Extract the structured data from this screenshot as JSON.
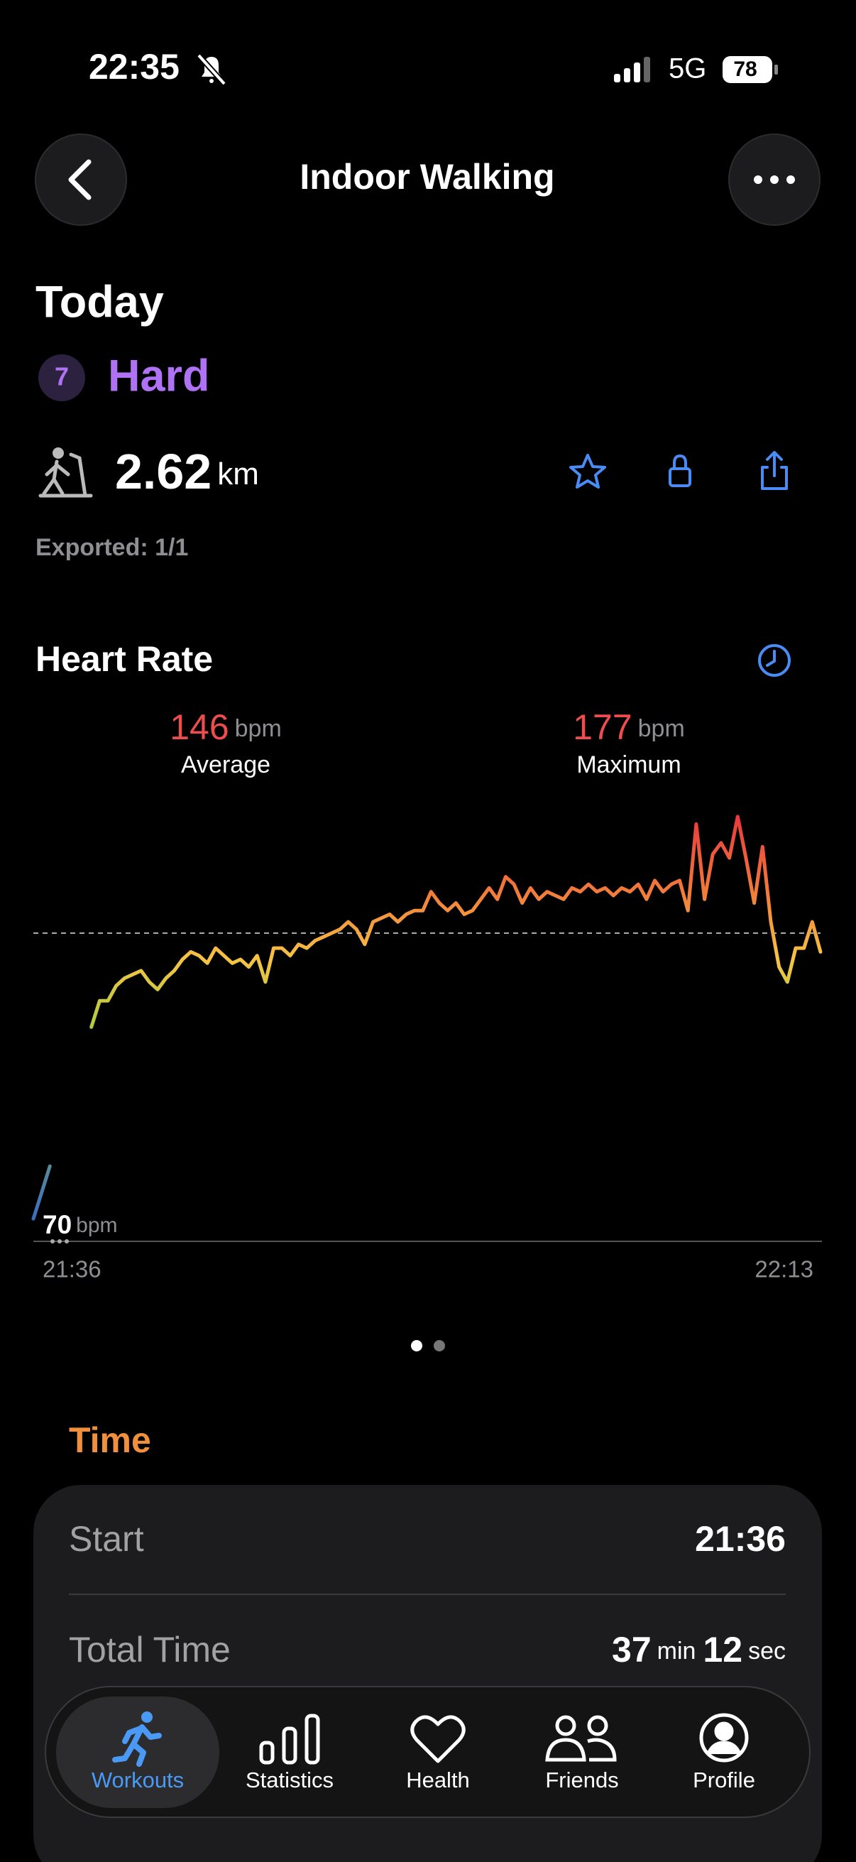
{
  "status_bar": {
    "time": "22:35",
    "network": "5G",
    "battery": 78
  },
  "header": {
    "title": "Indoor Walking"
  },
  "summary": {
    "date": "Today",
    "effort_level": 7,
    "effort_label": "Hard",
    "distance": 2.62,
    "distance_unit": "km",
    "exported": "Exported: 1/1"
  },
  "heart_rate": {
    "title": "Heart Rate",
    "average": {
      "value": 146,
      "unit": "bpm",
      "label": "Average"
    },
    "maximum": {
      "value": 177,
      "unit": "bpm",
      "label": "Maximum"
    }
  },
  "chart_data": {
    "type": "line",
    "categories": [
      "21:36",
      null,
      null,
      null,
      null,
      null,
      null,
      null,
      null,
      null,
      null,
      null,
      null,
      null,
      null,
      null,
      null,
      null,
      null,
      null,
      null,
      null,
      null,
      null,
      null,
      null,
      null,
      null,
      null,
      null,
      null,
      null,
      null,
      null,
      null,
      null,
      null,
      null,
      null,
      null,
      null,
      null,
      null,
      null,
      null,
      null,
      null,
      null,
      null,
      null,
      null,
      null,
      null,
      null,
      null,
      null,
      null,
      null,
      null,
      null,
      null,
      null,
      null,
      null,
      null,
      null,
      null,
      null,
      null,
      null,
      null,
      null,
      null,
      null,
      null,
      null,
      null,
      null,
      null,
      null,
      null,
      null,
      null,
      null,
      null,
      null,
      null,
      null,
      null,
      null,
      null,
      null,
      null,
      null,
      null,
      "22:13"
    ],
    "values": [
      70,
      77,
      84,
      null,
      null,
      null,
      null,
      121,
      128,
      128,
      132,
      134,
      135,
      136,
      133,
      131,
      134,
      136,
      139,
      141,
      140,
      138,
      142,
      140,
      138,
      139,
      137,
      140,
      133,
      142,
      142,
      140,
      143,
      142,
      144,
      145,
      146,
      147,
      149,
      147,
      143,
      149,
      150,
      151,
      149,
      151,
      152,
      152,
      157,
      154,
      152,
      154,
      151,
      152,
      155,
      158,
      155,
      161,
      159,
      154,
      158,
      155,
      157,
      156,
      155,
      158,
      157,
      159,
      157,
      158,
      156,
      158,
      157,
      159,
      155,
      160,
      157,
      159,
      160,
      152,
      175,
      155,
      167,
      170,
      166,
      177,
      166,
      154,
      169,
      149,
      137,
      133,
      142,
      142,
      149,
      141
    ],
    "ylim": [
      64,
      180
    ],
    "color_scale": [
      "#2f5fd0",
      "#9ccf3c",
      "#f6c343",
      "#f27b3a",
      "#e8303d"
    ],
    "min_label": {
      "value": 70,
      "unit": "bpm"
    }
  },
  "time_section": {
    "title": "Time",
    "start": {
      "label": "Start",
      "value": "21:36"
    },
    "total_time": {
      "label": "Total Time",
      "minutes": 37,
      "minutes_unit": "min",
      "seconds": 12,
      "seconds_unit": "sec"
    }
  },
  "tab_bar": {
    "tabs": [
      "Workouts",
      "Statistics",
      "Health",
      "Friends",
      "Profile"
    ]
  }
}
